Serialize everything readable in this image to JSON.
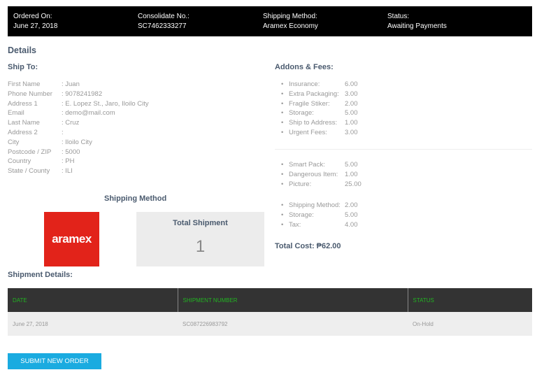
{
  "header": [
    {
      "label": "Ordered On:",
      "value": "June 27, 2018"
    },
    {
      "label": "Consolidate No.:",
      "value": "SC7462333277"
    },
    {
      "label": "Shipping Method:",
      "value": "Aramex Economy"
    },
    {
      "label": "Status:",
      "value": "Awaiting Payments"
    }
  ],
  "details_title": "Details",
  "ship_to": {
    "title": "Ship To:",
    "rows": [
      {
        "label": "First Name",
        "value": ": Juan"
      },
      {
        "label": "Phone Number",
        "value": ": 9078241982"
      },
      {
        "label": "Address 1",
        "value": ": E. Lopez St., Jaro, Iloilo City"
      },
      {
        "label": "Email",
        "value": ": demo@mail.com"
      },
      {
        "label": "Last Name",
        "value": ": Cruz"
      },
      {
        "label": "Address 2",
        "value": ":"
      },
      {
        "label": "City",
        "value": ": Iloilo City"
      },
      {
        "label": "Postcode / ZIP",
        "value": ": 5000"
      },
      {
        "label": "Country",
        "value": ": PH"
      },
      {
        "label": "State / County",
        "value": ": ILI"
      }
    ]
  },
  "addons": {
    "title": "Addons & Fees:",
    "groups": [
      [
        {
          "label": "Insurance:",
          "value": "6.00"
        },
        {
          "label": "Extra Packaging:",
          "value": "3.00"
        },
        {
          "label": "Fragile Stiker:",
          "value": "2.00"
        },
        {
          "label": "Storage:",
          "value": "5.00"
        },
        {
          "label": "Ship to Address:",
          "value": "1.00"
        },
        {
          "label": "Urgent Fees:",
          "value": "3.00"
        }
      ],
      [
        {
          "label": "Smart Pack:",
          "value": "5.00"
        },
        {
          "label": "Dangerous Item:",
          "value": "1.00"
        },
        {
          "label": "Picture:",
          "value": "25.00"
        }
      ],
      [
        {
          "label": "Shipping Method:",
          "value": "2.00"
        },
        {
          "label": "Storage:",
          "value": "5.00"
        },
        {
          "label": "Tax:",
          "value": "4.00"
        }
      ]
    ],
    "total": "Total Cost: ₱62.00"
  },
  "shipping_method": {
    "title": "Shipping Method",
    "logo_text": "aramex",
    "logo_color": "#e2231a",
    "total_label": "Total Shipment",
    "total_value": "1"
  },
  "shipment_details": {
    "title": "Shipment Details:",
    "columns": [
      "DATE",
      "SHIPMENT NUMBER",
      "STATUS"
    ],
    "rows": [
      [
        "June 27, 2018",
        "SC087226983792",
        "On-Hold"
      ]
    ]
  },
  "submit_label": "SUBMIT NEW ORDER",
  "colors": {
    "header_bg": "#000000",
    "button": "#1aabe0",
    "table_header_text": "#22b322"
  }
}
